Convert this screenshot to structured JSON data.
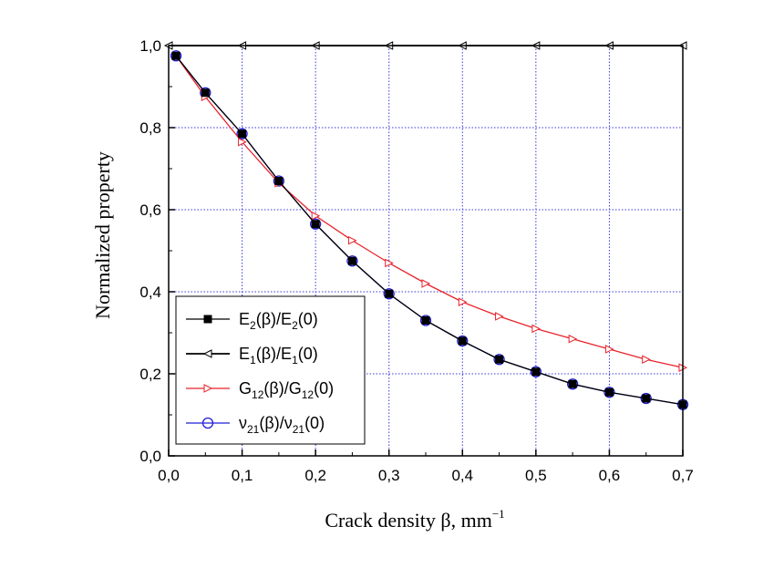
{
  "chart_data": {
    "type": "line",
    "title": "",
    "xlabel": "Crack density β, mm",
    "xlabel_superscript": "−1",
    "ylabel": "Normalized property",
    "xlim": [
      0.0,
      0.7
    ],
    "ylim": [
      0.0,
      1.0
    ],
    "grid": true,
    "x_ticks": [
      0.0,
      0.1,
      0.2,
      0.3,
      0.4,
      0.5,
      0.6,
      0.7
    ],
    "x_tick_labels": [
      "0,0",
      "0,1",
      "0,2",
      "0,3",
      "0,4",
      "0,5",
      "0,6",
      "0,7"
    ],
    "y_ticks": [
      0.0,
      0.2,
      0.4,
      0.6,
      0.8,
      1.0
    ],
    "y_tick_labels": [
      "0,0",
      "0,2",
      "0,4",
      "0,6",
      "0,8",
      "1,0"
    ],
    "legend_position": "bottom-left",
    "series": [
      {
        "name": "E2(β)/E2(0)",
        "label_parts": [
          "E",
          "2",
          "(β)/E",
          "2",
          "(0)"
        ],
        "color": "#000000",
        "marker": "filled-square",
        "x": [
          0.01,
          0.05,
          0.1,
          0.15,
          0.2,
          0.25,
          0.3,
          0.35,
          0.4,
          0.45,
          0.5,
          0.55,
          0.6,
          0.65,
          0.7
        ],
        "values": [
          0.975,
          0.885,
          0.785,
          0.67,
          0.565,
          0.475,
          0.395,
          0.33,
          0.28,
          0.235,
          0.205,
          0.175,
          0.155,
          0.14,
          0.125
        ]
      },
      {
        "name": "E1(β)/E1(0)",
        "label_parts": [
          "E",
          "1",
          "(β)/E",
          "1",
          "(0)"
        ],
        "color": "#000000",
        "marker": "left-triangle",
        "x": [
          0.0,
          0.1,
          0.2,
          0.3,
          0.4,
          0.5,
          0.6,
          0.7
        ],
        "values": [
          1.0,
          1.0,
          1.0,
          1.0,
          1.0,
          1.0,
          1.0,
          1.0
        ]
      },
      {
        "name": "G12(β)/G12(0)",
        "label_parts": [
          "G",
          "12",
          "(β)/G",
          "12",
          "(0)"
        ],
        "color": "#e8232b",
        "marker": "right-triangle",
        "x": [
          0.01,
          0.05,
          0.1,
          0.15,
          0.2,
          0.25,
          0.3,
          0.35,
          0.4,
          0.45,
          0.5,
          0.55,
          0.6,
          0.65,
          0.7
        ],
        "values": [
          0.975,
          0.875,
          0.765,
          0.665,
          0.585,
          0.525,
          0.47,
          0.42,
          0.375,
          0.34,
          0.31,
          0.285,
          0.26,
          0.235,
          0.215
        ]
      },
      {
        "name": "ν21(β)/ν21(0)",
        "label_parts": [
          "ν",
          "21",
          "(β)/ν",
          "21",
          "(0)"
        ],
        "color": "#1f1fd6",
        "marker": "open-circle",
        "x": [
          0.01,
          0.05,
          0.1,
          0.15,
          0.2,
          0.25,
          0.3,
          0.35,
          0.4,
          0.45,
          0.5,
          0.55,
          0.6,
          0.65,
          0.7
        ],
        "values": [
          0.975,
          0.885,
          0.785,
          0.67,
          0.565,
          0.475,
          0.395,
          0.33,
          0.28,
          0.235,
          0.205,
          0.175,
          0.155,
          0.14,
          0.125
        ]
      }
    ]
  }
}
